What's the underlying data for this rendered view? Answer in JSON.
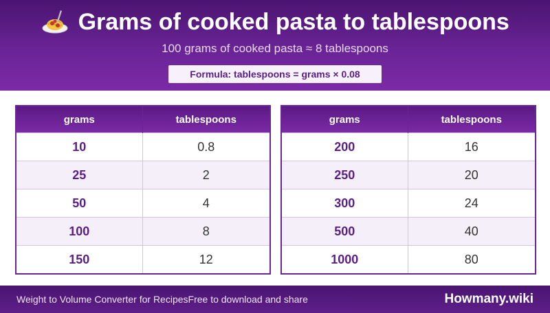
{
  "header": {
    "icon": "spaghetti-plate-icon",
    "title": "Grams of cooked pasta to tablespoons",
    "subtitle": "100 grams of cooked pasta ≈ 8 tablespoons",
    "formula": "Formula: tablespoons = grams × 0.08"
  },
  "tables": [
    {
      "headers": [
        "grams",
        "tablespoons"
      ],
      "rows": [
        [
          "10",
          "0.8"
        ],
        [
          "25",
          "2"
        ],
        [
          "50",
          "4"
        ],
        [
          "100",
          "8"
        ],
        [
          "150",
          "12"
        ]
      ]
    },
    {
      "headers": [
        "grams",
        "tablespoons"
      ],
      "rows": [
        [
          "200",
          "16"
        ],
        [
          "250",
          "20"
        ],
        [
          "300",
          "24"
        ],
        [
          "500",
          "40"
        ],
        [
          "1000",
          "80"
        ]
      ]
    }
  ],
  "footer": {
    "left_title": "Weight to Volume Converter for Recipes",
    "left_note": "Free to download and share",
    "brand": "Howmany.wiki"
  },
  "colors": {
    "header_purple": "#6a2496",
    "accent_text": "#5a1e86",
    "row_alt": "#f4eff9"
  }
}
